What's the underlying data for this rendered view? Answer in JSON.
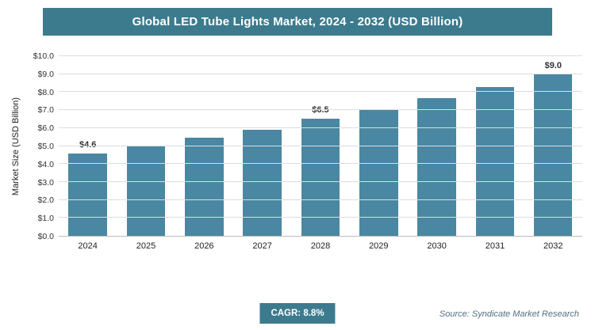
{
  "header": {
    "title": "Global LED Tube Lights Market, 2024 - 2032 (USD Billion)"
  },
  "chart_data": {
    "type": "bar",
    "categories": [
      "2024",
      "2025",
      "2026",
      "2027",
      "2028",
      "2029",
      "2030",
      "2031",
      "2032"
    ],
    "values": [
      4.6,
      5.0,
      5.45,
      5.9,
      6.5,
      7.0,
      7.65,
      8.3,
      9.0
    ],
    "data_labels": [
      "$4.6",
      "",
      "",
      "",
      "$6.5",
      "",
      "",
      "",
      "$9.0"
    ],
    "title": "Global LED Tube Lights Market, 2024 - 2032 (USD Billion)",
    "xlabel": "",
    "ylabel": "Market Size (USD Billion)",
    "ylim": [
      0,
      10
    ],
    "ytick_labels": [
      "$0.0",
      "$1.0",
      "$2.0",
      "$3.0",
      "$4.0",
      "$5.0",
      "$6.0",
      "$7.0",
      "$8.0",
      "$9.0",
      "$10.0"
    ],
    "grid": "horizontal",
    "legend": "none",
    "bar_color": "#4a87a2"
  },
  "footer": {
    "cagr_label": "CAGR: 8.8%",
    "source": "Source: Syndicate Market Research"
  },
  "colors": {
    "header_bg": "#3c7b8e",
    "bar": "#4a87a2",
    "badge_bg": "#3c7b8e",
    "gridline": "#dddddd"
  }
}
